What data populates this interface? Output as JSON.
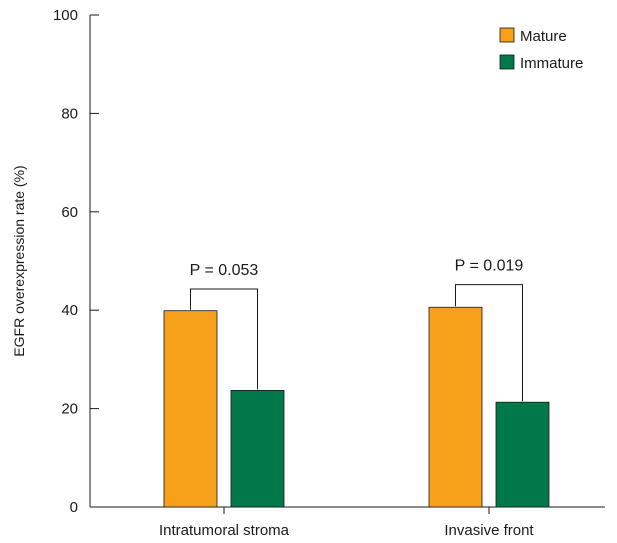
{
  "chart_data": {
    "type": "bar",
    "title": "",
    "xlabel": "",
    "ylabel": "EGFR overexpression rate (%)",
    "ylim": [
      0,
      100
    ],
    "yticks": [
      "0",
      "20",
      "40",
      "60",
      "80",
      "100"
    ],
    "categories": [
      "Intratumoral stroma",
      "Invasive front"
    ],
    "series": [
      {
        "name": "Mature",
        "color": "#F7A11A",
        "values": [
          39.9,
          40.6
        ]
      },
      {
        "name": "Immature",
        "color": "#00784A",
        "values": [
          23.7,
          21.3
        ]
      }
    ],
    "legend": {
      "position": "top-right"
    },
    "annotations": [
      {
        "category": 0,
        "text": "P = 0.053",
        "bracket_y": 44.3
      },
      {
        "category": 1,
        "text": "P = 0.019",
        "bracket_y": 45.2
      }
    ],
    "grid": false
  }
}
